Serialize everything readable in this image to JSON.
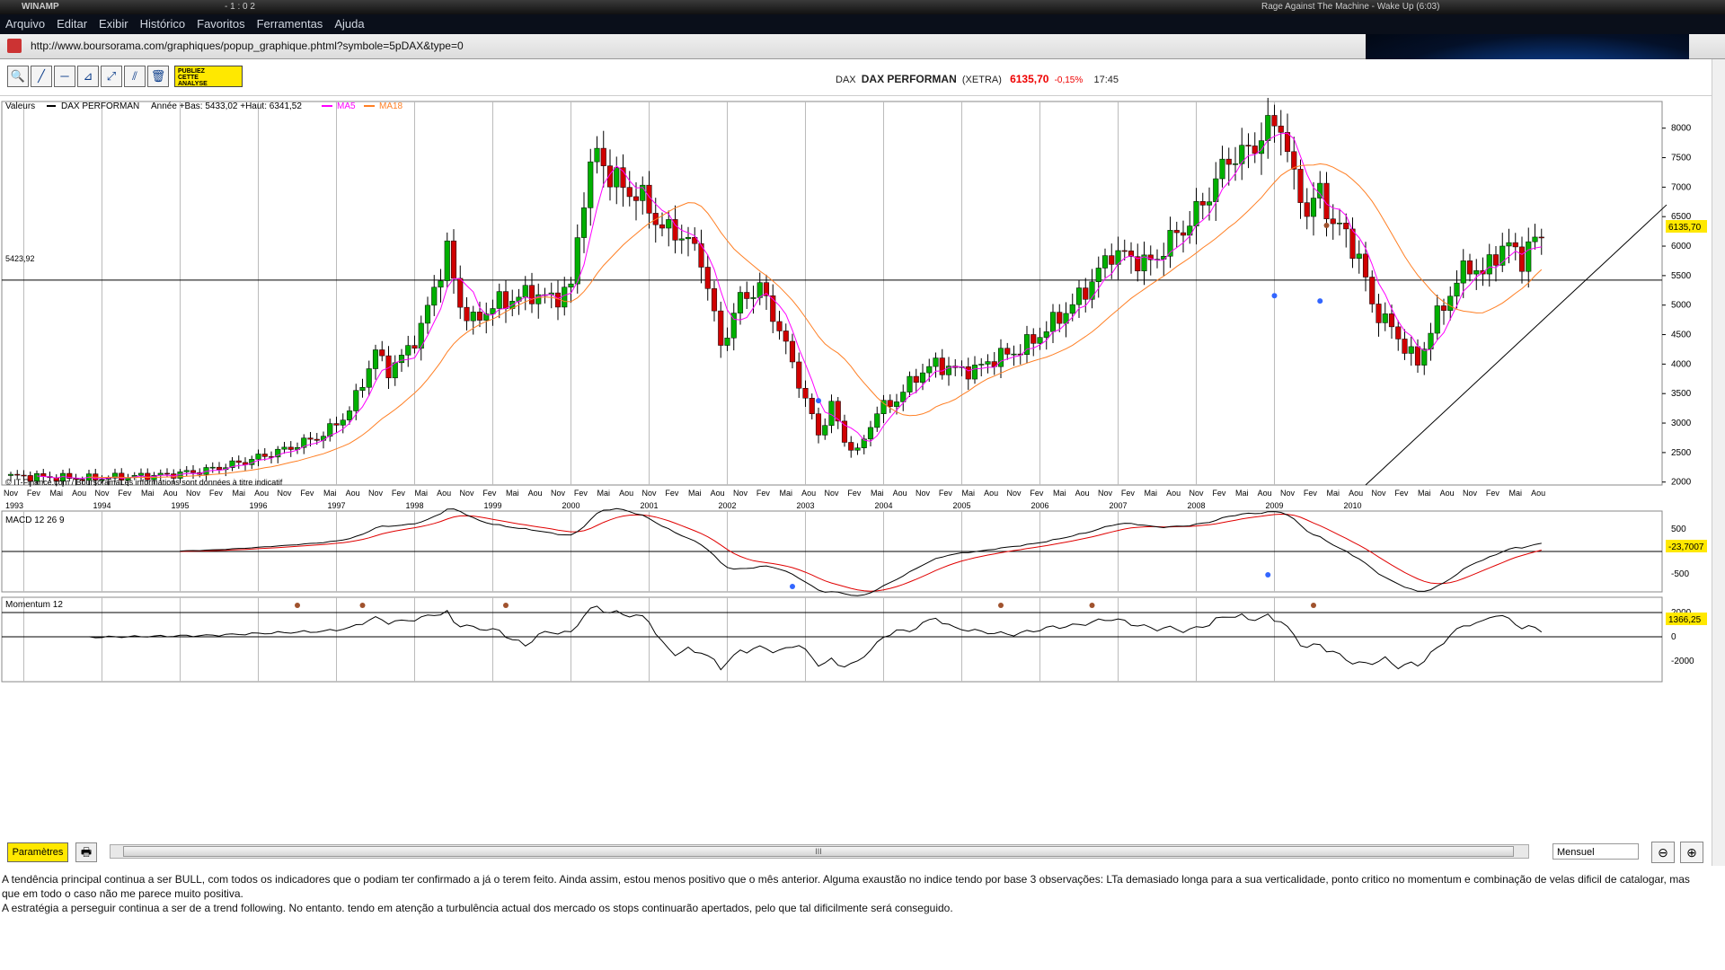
{
  "winamp": {
    "app": "WINAMP",
    "time": "- 1 : 0 2",
    "track": "Rage Against The Machine - Wake Up (6:03)"
  },
  "menu": [
    "Arquivo",
    "Editar",
    "Exibir",
    "Histórico",
    "Favoritos",
    "Ferramentas",
    "Ajuda"
  ],
  "url": "http://www.boursorama.com/graphiques/popup_graphique.phtml?symbole=5pDAX&type=0",
  "toolbar": {
    "publiez_line1": "PUBLIEZ",
    "publiez_line2": "CETTE",
    "publiez_line3": "ANALYSE"
  },
  "quote": {
    "market": "DAX",
    "name": "DAX PERFORMAN",
    "exchange": "(XETRA)",
    "price": "6135,70",
    "change": "-0,15%",
    "time": "17:45"
  },
  "legend": {
    "valeurs": "Valeurs",
    "series": "DAX PERFORMAN",
    "range": "Année +Bas: 5433,02 +Haut: 6341,52",
    "ma5": "MA5",
    "ma18": "MA18",
    "credit": "© IT-Finance.com / BoursoramaLes informations sont données à titre indicatif",
    "hline_label": "5423,92",
    "price_badge": "6135,70"
  },
  "colors": {
    "up": "#00b000",
    "down": "#d00000",
    "ma5": "#ff00ff",
    "ma18": "#ff7f24",
    "macd": "#000000",
    "signal": "#e00000",
    "marker_blue": "#3366ff",
    "marker_brown": "#a0522d",
    "badge": "#ffe800"
  },
  "chart_data": [
    {
      "type": "candlestick",
      "title": "DAX PERFORMAN",
      "yticks": [
        2000,
        2500,
        3000,
        3500,
        4000,
        4500,
        5000,
        5500,
        6000,
        6500,
        7000,
        7500,
        8000
      ],
      "ylim": [
        1950,
        8300
      ],
      "xlabels_months": [
        "Nov",
        "Fev",
        "Mai",
        "Aou",
        "Nov",
        "Fev",
        "Mai",
        "Aou",
        "Nov",
        "Fev",
        "Mai",
        "Aou",
        "Nov",
        "Fev",
        "Mai",
        "Aou",
        "Nov",
        "Fev",
        "Mai",
        "Aou",
        "Nov",
        "Fev",
        "Mai",
        "Aou",
        "Nov",
        "Fev",
        "Mai",
        "Aou",
        "Nov",
        "Fev",
        "Mai",
        "Aou",
        "Nov",
        "Fev",
        "Mai",
        "Aou",
        "Nov",
        "Fev",
        "Mai",
        "Aou",
        "Nov",
        "Fev",
        "Mai",
        "Aou",
        "Nov",
        "Fev",
        "Mai",
        "Aou",
        "Nov",
        "Fev",
        "Mai",
        "Aou",
        "Nov",
        "Fev",
        "Mai",
        "Aou",
        "Nov",
        "Fev",
        "Mai",
        "Aou",
        "Nov",
        "Fev",
        "Mai",
        "Aou",
        "Nov",
        "Fev",
        "Mai",
        "Aou"
      ],
      "xlabels_years": [
        "1993",
        "1994",
        "1995",
        "1996",
        "1997",
        "1998",
        "1999",
        "2000",
        "2001",
        "2002",
        "2003",
        "2004",
        "2005",
        "2006",
        "2007",
        "2008",
        "2009",
        "2010"
      ],
      "hline": 5423.92,
      "last_price": 6135.7,
      "close_anchors": [
        [
          0,
          2100
        ],
        [
          6,
          2080
        ],
        [
          12,
          2060
        ],
        [
          18,
          2090
        ],
        [
          24,
          2120
        ],
        [
          30,
          2200
        ],
        [
          36,
          2350
        ],
        [
          42,
          2550
        ],
        [
          48,
          2800
        ],
        [
          52,
          3200
        ],
        [
          54,
          3700
        ],
        [
          56,
          4200
        ],
        [
          58,
          3900
        ],
        [
          60,
          4100
        ],
        [
          63,
          4600
        ],
        [
          65,
          5300
        ],
        [
          67,
          5900
        ],
        [
          69,
          5000
        ],
        [
          71,
          4700
        ],
        [
          74,
          5000
        ],
        [
          77,
          5100
        ],
        [
          80,
          5200
        ],
        [
          83,
          5100
        ],
        [
          86,
          5300
        ],
        [
          88,
          6900
        ],
        [
          90,
          7600
        ],
        [
          92,
          7200
        ],
        [
          94,
          7000
        ],
        [
          97,
          6800
        ],
        [
          100,
          6300
        ],
        [
          103,
          6200
        ],
        [
          106,
          5800
        ],
        [
          109,
          4300
        ],
        [
          112,
          5100
        ],
        [
          115,
          5300
        ],
        [
          118,
          4600
        ],
        [
          121,
          3700
        ],
        [
          124,
          2800
        ],
        [
          126,
          3300
        ],
        [
          128,
          2700
        ],
        [
          130,
          2500
        ],
        [
          133,
          3200
        ],
        [
          136,
          3400
        ],
        [
          139,
          3800
        ],
        [
          142,
          4000
        ],
        [
          145,
          3900
        ],
        [
          148,
          3900
        ],
        [
          151,
          4100
        ],
        [
          154,
          4200
        ],
        [
          157,
          4400
        ],
        [
          160,
          4700
        ],
        [
          163,
          5000
        ],
        [
          166,
          5400
        ],
        [
          169,
          5900
        ],
        [
          172,
          5800
        ],
        [
          175,
          5700
        ],
        [
          178,
          6100
        ],
        [
          181,
          6400
        ],
        [
          184,
          6900
        ],
        [
          187,
          7500
        ],
        [
          190,
          7600
        ],
        [
          193,
          8000
        ],
        [
          195,
          8100
        ],
        [
          197,
          7100
        ],
        [
          199,
          6600
        ],
        [
          201,
          6900
        ],
        [
          203,
          6400
        ],
        [
          205,
          6200
        ],
        [
          207,
          5800
        ],
        [
          209,
          5000
        ],
        [
          212,
          4600
        ],
        [
          214,
          4300
        ],
        [
          216,
          4000
        ],
        [
          218,
          4600
        ],
        [
          220,
          5000
        ],
        [
          222,
          5400
        ],
        [
          224,
          5700
        ],
        [
          226,
          5500
        ],
        [
          228,
          5900
        ],
        [
          230,
          6000
        ],
        [
          232,
          5800
        ],
        [
          234,
          6100
        ],
        [
          235,
          6135
        ]
      ],
      "ma_series": [
        "MA5",
        "MA18"
      ]
    },
    {
      "type": "line",
      "title": "MACD 12 26 9",
      "yticks": [
        500,
        -500
      ],
      "last_value": "-23,7007",
      "series": [
        {
          "name": "MACD"
        },
        {
          "name": "Signal"
        }
      ]
    },
    {
      "type": "line",
      "title": "Momentum 12",
      "yticks": [
        2000,
        0,
        -2000
      ],
      "last_value": "1366,25",
      "series": [
        {
          "name": "Momentum"
        }
      ]
    }
  ],
  "bottom": {
    "params_label": "Paramètres",
    "period": "Mensuel"
  },
  "commentary": [
    "A tendência principal continua a ser BULL, com todos os indicadores que o podiam ter confirmado a já o terem feito. Ainda assim, estou menos positivo que o mês anterior. Alguma exaustão no indice tendo por base 3 observações: LTa demasiado longa para a sua verticalidade, ponto critico no momentum e combinação de velas dificil de catalogar, mas que em todo o caso não me parece muito positiva.",
    "A estratégia a perseguir continua a ser de a trend following. No entanto. tendo em atenção a turbulência actual dos mercado os stops continuarão apertados, pelo que tal dificilmente será conseguido."
  ]
}
